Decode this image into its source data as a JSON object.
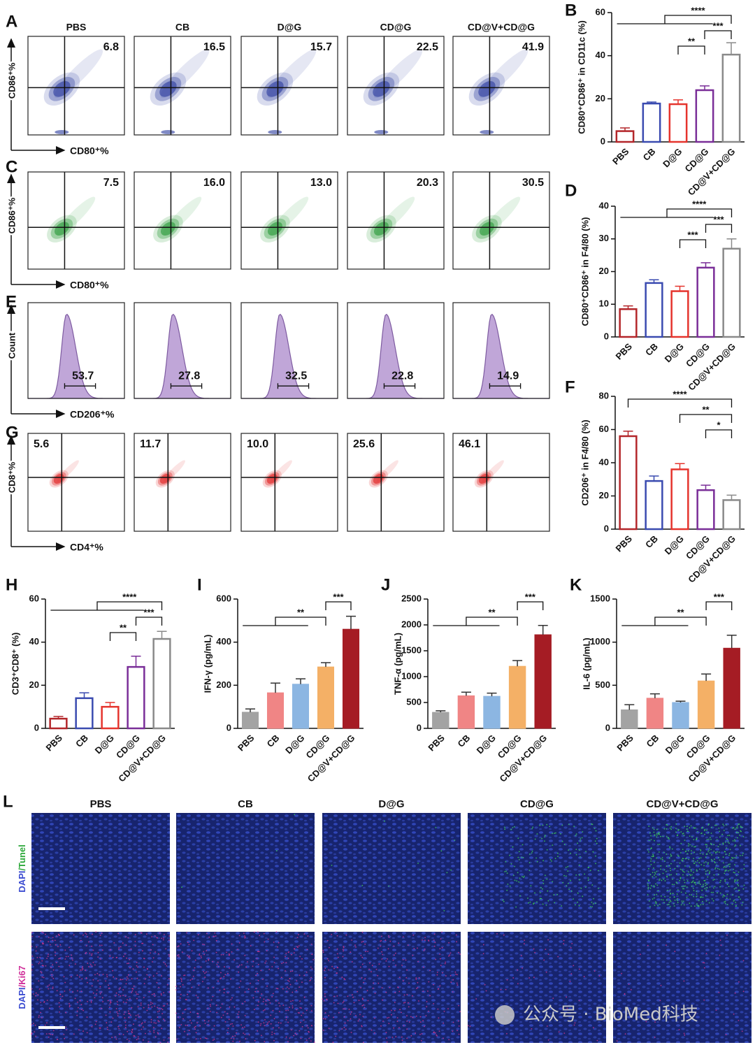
{
  "flow": [
    {
      "panel": "A",
      "headers": [
        "PBS",
        "CB",
        "D@G",
        "CD@G",
        "CD@V+CD@G"
      ],
      "values": [
        "6.8",
        "16.5",
        "15.7",
        "22.5",
        "41.9"
      ],
      "x_label": "CD80⁺%",
      "y_label": "CD86⁺%"
    },
    {
      "panel": "C",
      "values": [
        "7.5",
        "16.0",
        "13.0",
        "20.3",
        "30.5"
      ],
      "x_label": "CD80⁺%",
      "y_label": "CD86⁺%"
    },
    {
      "panel": "E",
      "values": [
        "53.7",
        "27.8",
        "32.5",
        "22.8",
        "14.9"
      ],
      "x_label": "CD206⁺%",
      "y_label": "Count"
    },
    {
      "panel": "G",
      "values": [
        "5.6",
        "11.7",
        "10.0",
        "25.6",
        "46.1"
      ],
      "x_label": "CD4⁺%",
      "y_label": "CD8⁺%"
    }
  ],
  "chart_data": [
    {
      "type": "bar",
      "panel": "B",
      "y_label": "CD80⁺CD86⁺ in CD11c (%)",
      "style": "outline",
      "categories": [
        "PBS",
        "CB",
        "D@G",
        "CD@G",
        "CD@V+CD@G"
      ],
      "values": [
        5,
        17.8,
        17.5,
        24,
        40.5
      ],
      "errors": [
        1.5,
        0.7,
        2,
        2,
        5.5
      ],
      "colors": [
        "#b3262a",
        "#3a4bb0",
        "#e5342d",
        "#7a2e98",
        "#8a8a8a"
      ],
      "ylim": [
        0,
        60
      ],
      "yticks": [
        0,
        20,
        40,
        60
      ],
      "annotations": [
        "****",
        "***",
        "**"
      ]
    },
    {
      "type": "bar",
      "panel": "D",
      "y_label": "CD80⁺CD86⁺ in F4/80 (%)",
      "style": "outline",
      "categories": [
        "PBS",
        "CB",
        "D@G",
        "CD@G",
        "CD@V+CD@G"
      ],
      "values": [
        8.5,
        16.5,
        14,
        21.2,
        27
      ],
      "errors": [
        1,
        1,
        1.5,
        1.5,
        3
      ],
      "colors": [
        "#b3262a",
        "#3a4bb0",
        "#e5342d",
        "#7a2e98",
        "#8a8a8a"
      ],
      "ylim": [
        0,
        40
      ],
      "yticks": [
        0,
        10,
        20,
        30,
        40
      ],
      "annotations": [
        "****",
        "***",
        "***"
      ]
    },
    {
      "type": "bar",
      "panel": "F",
      "y_label": "CD206⁺ in F4/80 (%)",
      "style": "outline",
      "categories": [
        "PBS",
        "CB",
        "D@G",
        "CD@G",
        "CD@V+CD@G"
      ],
      "values": [
        56,
        29,
        36,
        23.5,
        17.5
      ],
      "errors": [
        3,
        3,
        3.5,
        3,
        3
      ],
      "colors": [
        "#b3262a",
        "#3a4bb0",
        "#e5342d",
        "#7a2e98",
        "#8a8a8a"
      ],
      "ylim": [
        0,
        80
      ],
      "yticks": [
        0,
        20,
        40,
        60,
        80
      ],
      "annotations": [
        "****",
        "**",
        "*"
      ]
    },
    {
      "type": "bar",
      "panel": "H",
      "y_label": "CD3⁺CD8⁺ (%)",
      "style": "outline",
      "categories": [
        "PBS",
        "CB",
        "D@G",
        "CD@G",
        "CD@V+CD@G"
      ],
      "values": [
        4.5,
        14,
        10,
        28.5,
        41.5
      ],
      "errors": [
        1,
        2.5,
        2,
        5,
        3.5
      ],
      "colors": [
        "#b3262a",
        "#3a4bb0",
        "#e5342d",
        "#7a2e98",
        "#8a8a8a"
      ],
      "ylim": [
        0,
        60
      ],
      "yticks": [
        0,
        20,
        40,
        60
      ],
      "annotations": [
        "****",
        "***",
        "**"
      ]
    },
    {
      "type": "bar",
      "panel": "I",
      "y_label": "IFN-γ (pg/mL)",
      "style": "filled",
      "categories": [
        "PBS",
        "CB",
        "D@G",
        "CD@G",
        "CD@V+CD@G"
      ],
      "values": [
        75,
        165,
        205,
        285,
        460
      ],
      "errors": [
        15,
        45,
        25,
        20,
        60
      ],
      "colors": [
        "#a3a3a3",
        "#f08585",
        "#8cb6e2",
        "#f4b066",
        "#a51c24"
      ],
      "ylim": [
        0,
        600
      ],
      "yticks": [
        0,
        200,
        400,
        600
      ],
      "annotations": [
        "***",
        "**"
      ]
    },
    {
      "type": "bar",
      "panel": "J",
      "y_label": "TNF-α (pg/mL)",
      "style": "filled",
      "categories": [
        "PBS",
        "CB",
        "D@G",
        "CD@G",
        "CD@V+CD@G"
      ],
      "values": [
        310,
        630,
        620,
        1200,
        1810
      ],
      "errors": [
        30,
        70,
        60,
        110,
        180
      ],
      "colors": [
        "#a3a3a3",
        "#f08585",
        "#8cb6e2",
        "#f4b066",
        "#a51c24"
      ],
      "ylim": [
        0,
        2500
      ],
      "yticks": [
        0,
        500,
        1000,
        1500,
        2000,
        2500
      ],
      "annotations": [
        "***",
        "**"
      ]
    },
    {
      "type": "bar",
      "panel": "K",
      "y_label": "IL-6 (pg/mL)",
      "style": "filled",
      "categories": [
        "PBS",
        "CB",
        "D@G",
        "CD@G",
        "CD@V+CD@G"
      ],
      "values": [
        215,
        350,
        300,
        550,
        930
      ],
      "errors": [
        60,
        50,
        15,
        80,
        150
      ],
      "colors": [
        "#a3a3a3",
        "#f08585",
        "#8cb6e2",
        "#f4b066",
        "#a51c24"
      ],
      "ylim": [
        0,
        1500
      ],
      "yticks": [
        0,
        500,
        1000,
        1500
      ],
      "annotations": [
        "***",
        "**"
      ]
    }
  ],
  "imaging": {
    "panel": "L",
    "headers": [
      "PBS",
      "CB",
      "D@G",
      "CD@G",
      "CD@V+CD@G"
    ],
    "rows": [
      [
        "DAPI",
        "/Tunel"
      ],
      [
        "DAPI",
        "/Ki67"
      ]
    ]
  },
  "watermark": "公众号 · BioMed科技"
}
